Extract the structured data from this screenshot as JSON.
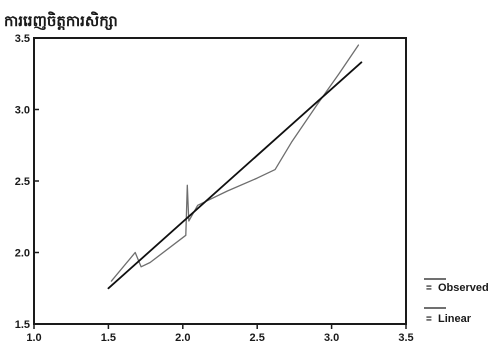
{
  "chart_data": {
    "type": "line",
    "title": "ការរេញចិត្តការសិក្សា",
    "xlabel": "",
    "ylabel": "",
    "xlim": [
      1.0,
      3.5
    ],
    "ylim": [
      1.5,
      3.5
    ],
    "x_ticks": [
      "1.0",
      "1.5",
      "2.0",
      "2.5",
      "3.0",
      "3.5"
    ],
    "y_ticks": [
      "1.5",
      "2.0",
      "2.5",
      "3.0",
      "3.5"
    ],
    "grid": false,
    "legend_position": "bottom-right",
    "series": [
      {
        "name": "Observed",
        "legend_marker": "=",
        "line_color": "#6e6e6e",
        "points": [
          {
            "x": 1.52,
            "y": 1.8
          },
          {
            "x": 1.68,
            "y": 2.0
          },
          {
            "x": 1.72,
            "y": 1.9
          },
          {
            "x": 1.78,
            "y": 1.93
          },
          {
            "x": 2.02,
            "y": 2.12
          },
          {
            "x": 2.03,
            "y": 2.47
          },
          {
            "x": 2.04,
            "y": 2.22
          },
          {
            "x": 2.1,
            "y": 2.33
          },
          {
            "x": 2.3,
            "y": 2.43
          },
          {
            "x": 2.5,
            "y": 2.52
          },
          {
            "x": 2.62,
            "y": 2.58
          },
          {
            "x": 2.73,
            "y": 2.77
          },
          {
            "x": 2.9,
            "y": 3.03
          },
          {
            "x": 3.05,
            "y": 3.25
          },
          {
            "x": 3.18,
            "y": 3.45
          }
        ]
      },
      {
        "name": "Linear",
        "legend_marker": "=",
        "line_color": "#101010",
        "points": [
          {
            "x": 1.5,
            "y": 1.75
          },
          {
            "x": 3.2,
            "y": 3.33
          }
        ]
      }
    ]
  }
}
